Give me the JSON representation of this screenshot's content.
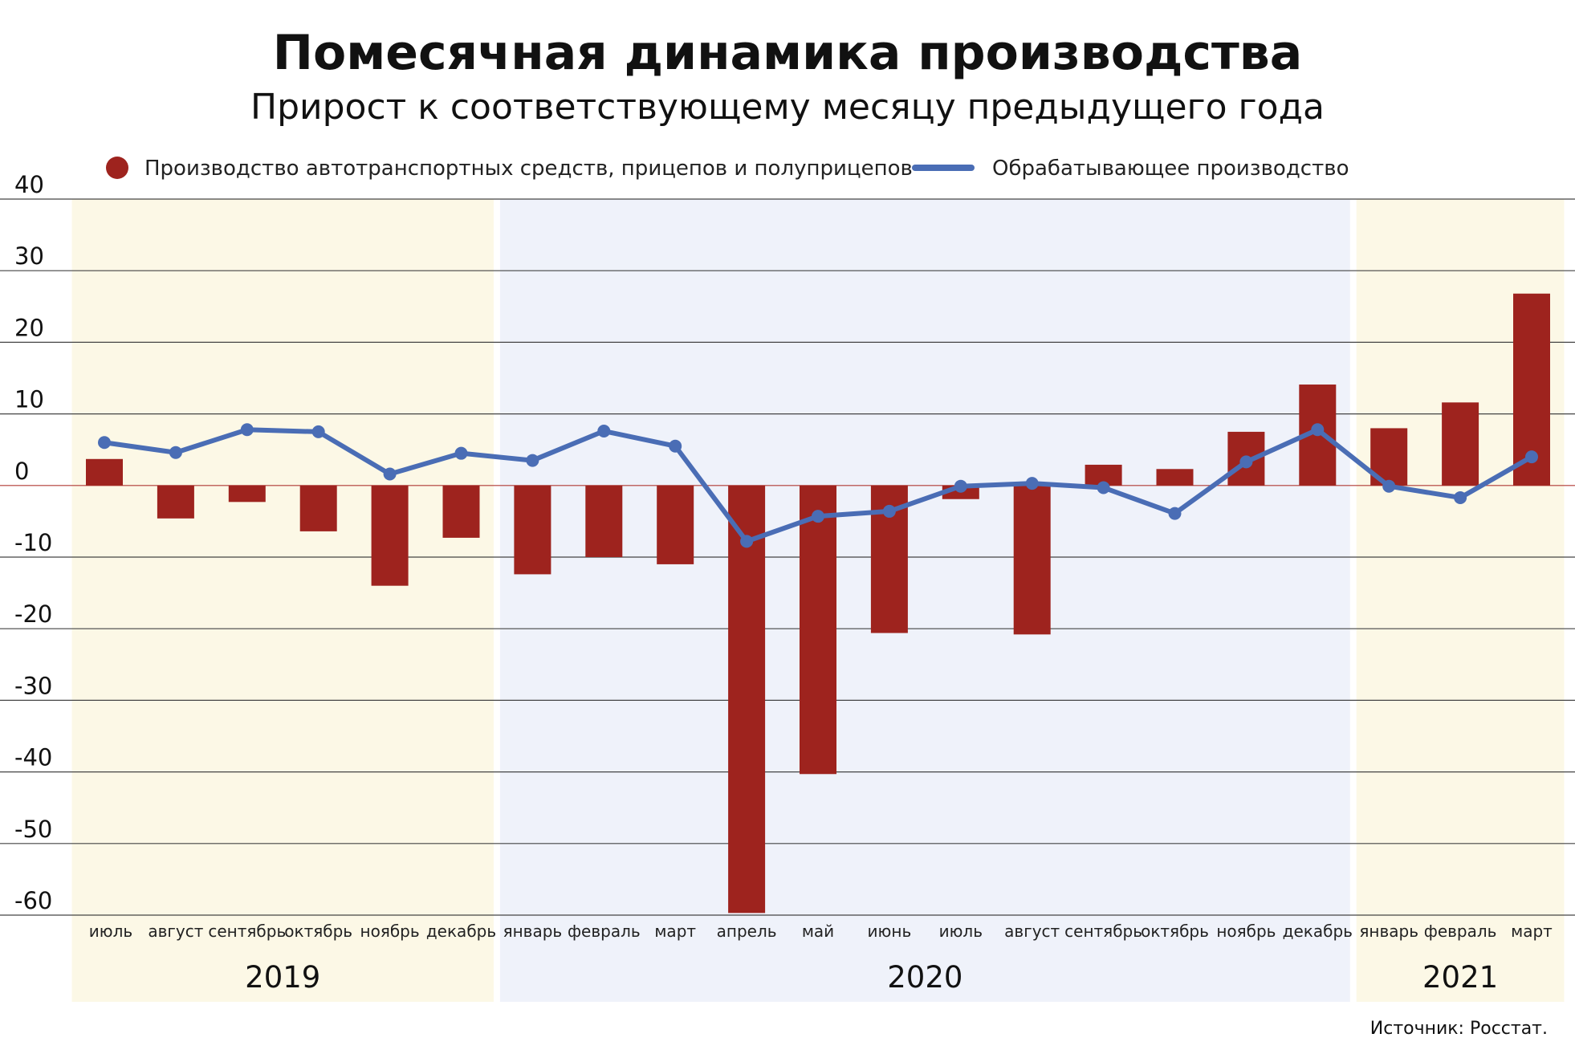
{
  "chart_data": {
    "type": "bar+line",
    "title": "Помесячная динамика производства",
    "subtitle": "Прирост к соответствующему месяцу предыдущего года",
    "categories": [
      "июль",
      "август",
      "сентябрь",
      "октябрь",
      "ноябрь",
      "декабрь",
      "январь",
      "февраль",
      "март",
      "апрель",
      "май",
      "июнь",
      "июль",
      "август",
      "сентябрь",
      "октябрь",
      "ноябрь",
      "декабрь",
      "январь",
      "февраль",
      "март"
    ],
    "year_groups": [
      {
        "label": "2019",
        "start": 0,
        "end": 5,
        "color": "#fcf8e6"
      },
      {
        "label": "2020",
        "start": 6,
        "end": 17,
        "color": "#eff2fa"
      },
      {
        "label": "2021",
        "start": 18,
        "end": 20,
        "color": "#fcf8e6"
      }
    ],
    "series": [
      {
        "name": "Производство автотранспортных средств, прицепов и полуприцепов",
        "type": "bar",
        "color": "#9e231e",
        "values": [
          3.7,
          -4.6,
          -2.3,
          -6.4,
          -14.0,
          -7.3,
          -12.4,
          -10.0,
          -11.0,
          -59.7,
          -40.3,
          -20.6,
          -1.9,
          -20.8,
          2.9,
          2.3,
          7.5,
          14.1,
          8.0,
          11.6,
          26.8
        ]
      },
      {
        "name": "Обрабатывающее производство",
        "type": "line",
        "color": "#4a6db5",
        "values": [
          6.0,
          4.6,
          7.8,
          7.5,
          1.6,
          4.5,
          3.5,
          7.6,
          5.5,
          -7.8,
          -4.3,
          -3.6,
          -0.1,
          0.3,
          -0.3,
          -3.9,
          3.3,
          7.8,
          -0.1,
          -1.7,
          4.0
        ]
      }
    ],
    "ylim": [
      -60,
      40
    ],
    "yticks": [
      40,
      30,
      20,
      10,
      0,
      -10,
      -20,
      -30,
      -40,
      -50,
      -60
    ],
    "grid": true,
    "legend": "top",
    "source": "Источник: Росстат."
  }
}
